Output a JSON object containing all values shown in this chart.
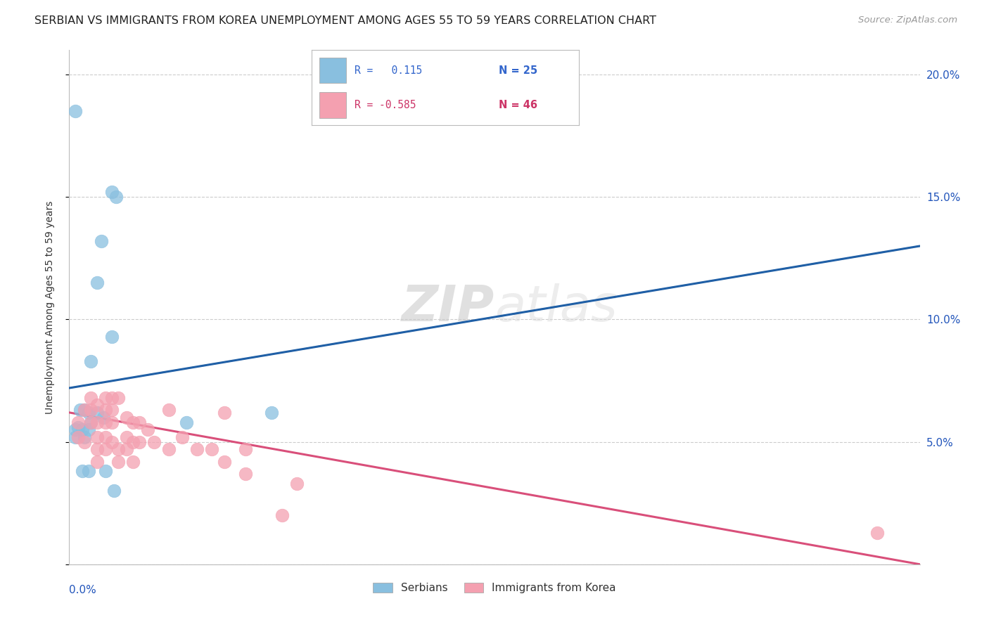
{
  "title": "SERBIAN VS IMMIGRANTS FROM KOREA UNEMPLOYMENT AMONG AGES 55 TO 59 YEARS CORRELATION CHART",
  "source": "Source: ZipAtlas.com",
  "ylabel": "Unemployment Among Ages 55 to 59 years",
  "watermark": "ZIPatlas",
  "serbian_points": [
    [
      0.003,
      0.185
    ],
    [
      0.02,
      0.152
    ],
    [
      0.022,
      0.15
    ],
    [
      0.015,
      0.132
    ],
    [
      0.013,
      0.115
    ],
    [
      0.02,
      0.093
    ],
    [
      0.01,
      0.083
    ],
    [
      0.005,
      0.063
    ],
    [
      0.007,
      0.063
    ],
    [
      0.009,
      0.062
    ],
    [
      0.013,
      0.062
    ],
    [
      0.016,
      0.06
    ],
    [
      0.01,
      0.058
    ],
    [
      0.004,
      0.056
    ],
    [
      0.003,
      0.055
    ],
    [
      0.006,
      0.055
    ],
    [
      0.009,
      0.055
    ],
    [
      0.003,
      0.052
    ],
    [
      0.007,
      0.052
    ],
    [
      0.006,
      0.038
    ],
    [
      0.009,
      0.038
    ],
    [
      0.017,
      0.038
    ],
    [
      0.021,
      0.03
    ],
    [
      0.055,
      0.058
    ],
    [
      0.095,
      0.062
    ]
  ],
  "korean_points": [
    [
      0.004,
      0.052
    ],
    [
      0.007,
      0.05
    ],
    [
      0.004,
      0.058
    ],
    [
      0.007,
      0.063
    ],
    [
      0.01,
      0.068
    ],
    [
      0.01,
      0.063
    ],
    [
      0.01,
      0.058
    ],
    [
      0.013,
      0.065
    ],
    [
      0.013,
      0.058
    ],
    [
      0.013,
      0.052
    ],
    [
      0.013,
      0.047
    ],
    [
      0.013,
      0.042
    ],
    [
      0.017,
      0.068
    ],
    [
      0.017,
      0.063
    ],
    [
      0.017,
      0.058
    ],
    [
      0.017,
      0.052
    ],
    [
      0.017,
      0.047
    ],
    [
      0.02,
      0.068
    ],
    [
      0.02,
      0.063
    ],
    [
      0.02,
      0.058
    ],
    [
      0.02,
      0.05
    ],
    [
      0.023,
      0.068
    ],
    [
      0.023,
      0.047
    ],
    [
      0.023,
      0.042
    ],
    [
      0.027,
      0.06
    ],
    [
      0.027,
      0.052
    ],
    [
      0.027,
      0.047
    ],
    [
      0.03,
      0.058
    ],
    [
      0.03,
      0.05
    ],
    [
      0.03,
      0.042
    ],
    [
      0.033,
      0.058
    ],
    [
      0.033,
      0.05
    ],
    [
      0.037,
      0.055
    ],
    [
      0.04,
      0.05
    ],
    [
      0.047,
      0.063
    ],
    [
      0.047,
      0.047
    ],
    [
      0.053,
      0.052
    ],
    [
      0.06,
      0.047
    ],
    [
      0.067,
      0.047
    ],
    [
      0.073,
      0.062
    ],
    [
      0.073,
      0.042
    ],
    [
      0.083,
      0.047
    ],
    [
      0.083,
      0.037
    ],
    [
      0.1,
      0.02
    ],
    [
      0.107,
      0.033
    ],
    [
      0.38,
      0.013
    ]
  ],
  "serbian_color": "#89bfdf",
  "korean_color": "#f4a0b0",
  "serbian_line_color": "#1f5fa6",
  "korean_line_color": "#d94f7a",
  "bg_color": "#ffffff",
  "grid_color": "#cccccc",
  "xlim": [
    0.0,
    0.4
  ],
  "ylim": [
    0.0,
    0.21
  ],
  "title_fontsize": 11.5,
  "source_fontsize": 9.5,
  "legend_serbian_r": "R =   0.115",
  "legend_serbian_n": "N = 25",
  "legend_korean_r": "R = -0.585",
  "legend_korean_n": "N = 46",
  "legend_serbian_label": "Serbians",
  "legend_korean_label": "Immigrants from Korea"
}
